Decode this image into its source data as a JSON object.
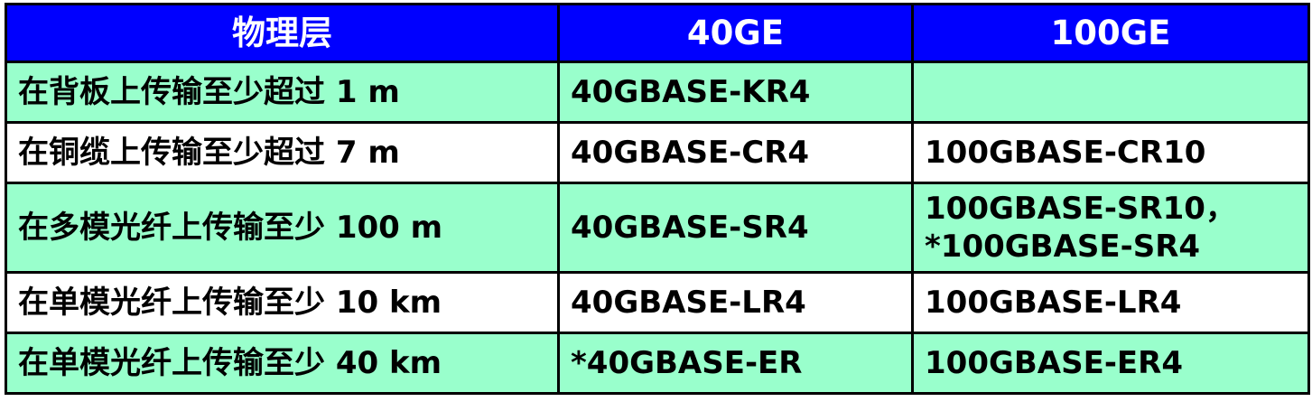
{
  "table": {
    "headers": [
      "物理层",
      "40GE",
      "100GE"
    ],
    "rows": [
      {
        "layer": "在背板上传输至少超过 1 m",
        "ge40": "40GBASE-KR4",
        "ge100": [
          "",
          ""
        ]
      },
      {
        "layer": "在铜缆上传输至少超过 7 m",
        "ge40": "40GBASE-CR4",
        "ge100": [
          "100GBASE-CR10",
          ""
        ]
      },
      {
        "layer": "在多模光纤上传输至少 100 m",
        "ge40": "40GBASE-SR4",
        "ge100": [
          "100GBASE-SR10，",
          "*100GBASE-SR4"
        ]
      },
      {
        "layer": "在单模光纤上传输至少 10 km",
        "ge40": "40GBASE-LR4",
        "ge100": [
          "100GBASE-LR4",
          ""
        ]
      },
      {
        "layer": "在单模光纤上传输至少 40 km",
        "ge40": "*40GBASE-ER",
        "ge100": [
          "100GBASE-ER4",
          ""
        ]
      }
    ]
  },
  "colors": {
    "header_bg": "#0000ff",
    "header_text": "#ffffff",
    "row_green": "#99ffcc",
    "row_white": "#ffffff",
    "border": "#000000"
  }
}
